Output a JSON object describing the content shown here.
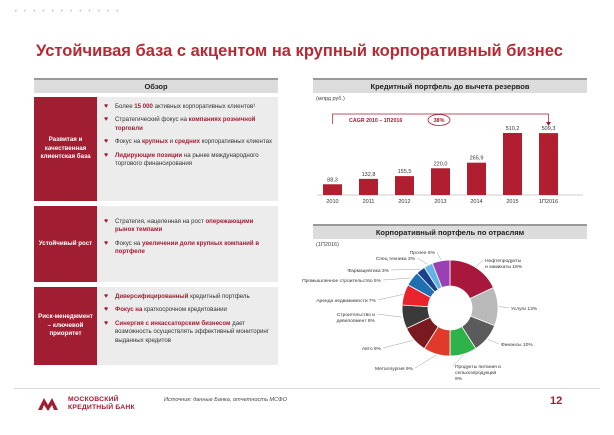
{
  "page": {
    "title": "Устойчивая база с акцентом на крупный корпоративный бизнес",
    "page_number": "12",
    "source": "Источник: данные Банка, отчетность МСФО",
    "logo_line1": "МОСКОВСКИЙ",
    "logo_line2": "КРЕДИТНЫЙ БАНК",
    "decor_dots": "• • • • • • • • • • • •"
  },
  "overview": {
    "header": "Обзор",
    "rows": [
      {
        "label": "Развитая и качественная клиентская база",
        "bullets": [
          [
            {
              "t": "Более "
            },
            {
              "t": "15 000",
              "hl": true
            },
            {
              "t": " активных корпоративных клиентов¹"
            }
          ],
          [
            {
              "t": "Стратегический фокус на "
            },
            {
              "t": "компаниях розничной торговли",
              "hl": true
            }
          ],
          [
            {
              "t": "Фокус на "
            },
            {
              "t": "крупных",
              "hl": true
            },
            {
              "t": " и "
            },
            {
              "t": "средних",
              "hl": true
            },
            {
              "t": " корпоративных клиентах"
            }
          ],
          [
            {
              "t": "Лидирующие позиции",
              "hl": true
            },
            {
              "t": " на рынке международного торгового финансирования"
            }
          ]
        ]
      },
      {
        "label": "Устойчивый рост",
        "bullets": [
          [
            {
              "t": "Стратегия, нацеленная на рост "
            },
            {
              "t": "опережающими рынок темпами",
              "hl": true
            }
          ],
          [
            {
              "t": "Фокус на "
            },
            {
              "t": "увеличении доли крупных компаний в портфеле",
              "hl": true
            }
          ]
        ]
      },
      {
        "label": "Риск-менеджмент – ключевой приоритет",
        "bullets": [
          [
            {
              "t": "Диверсифицированный",
              "hl": true
            },
            {
              "t": " кредитный портфель"
            }
          ],
          [
            {
              "t": "Фокус на",
              "hl": true
            },
            {
              "t": " краткосрочном кредитовании"
            }
          ],
          [
            {
              "t": "Синергия с инкассаторским бизнесом",
              "hl": true
            },
            {
              "t": " дает возможность осуществлять эффективный мониторинг выданных кредитов"
            }
          ]
        ]
      }
    ]
  },
  "chart_data": [
    {
      "type": "bar",
      "title": "Кредитный портфель до вычета резервов",
      "unit": "(млрд руб.)",
      "categories": [
        "2010",
        "2011",
        "2012",
        "2013",
        "2014",
        "2015",
        "1П2016"
      ],
      "values": [
        88.3,
        132.8,
        155.5,
        220.0,
        265.9,
        510.2,
        509.3
      ],
      "value_labels": [
        "88,3",
        "132,8",
        "155,5",
        "220,0",
        "265,9",
        "510,2",
        "509,3"
      ],
      "annotation": "CAGR 2010 – 1П2016",
      "annotation_value": "38%",
      "color": "#b01e30"
    },
    {
      "type": "pie",
      "title": "Корпоративный портфель по отраслям",
      "subtitle": "(1П2016)",
      "slices": [
        {
          "label": "Нефтепродукты и химикаты",
          "value": 18,
          "color": "#a8183c"
        },
        {
          "label": "Услуги",
          "value": 13,
          "color": "#b9b9b9"
        },
        {
          "label": "Финансы",
          "value": 10,
          "color": "#5b5b5b"
        },
        {
          "label": "Продукты питания и сельхозпродукция",
          "value": 9,
          "color": "#2fb24a"
        },
        {
          "label": "Металлургия",
          "value": 9,
          "color": "#e03a2a"
        },
        {
          "label": "Авто",
          "value": 9,
          "color": "#7a1a20"
        },
        {
          "label": "Строительство и девелопмент",
          "value": 8,
          "color": "#3a3a3a"
        },
        {
          "label": "Аренда недвижимости",
          "value": 7,
          "color": "#e8232c"
        },
        {
          "label": "Промышленное строительство",
          "value": 5,
          "color": "#1f6fb3"
        },
        {
          "label": "Фармацевтика",
          "value": 3,
          "color": "#1a3f8c"
        },
        {
          "label": "Спец техника",
          "value": 3,
          "color": "#5fb3e6"
        },
        {
          "label": "Прочее",
          "value": 6,
          "color": "#9b3fb5"
        }
      ],
      "display_labels": [
        "Нефтепродукты и химикаты 18%",
        "Услуги 13%",
        "Финансы 10%",
        "Продукты питания и сельхозпродукция 9%",
        "Металлургия 9%",
        "Авто 9%",
        "Строительство и девелопмент 8%",
        "Аренда недвижимости 7%",
        "Промышленное строительство 5%",
        "Фармацевтика 3%",
        "Спец техника 3%",
        "Прочее 6%"
      ]
    }
  ]
}
